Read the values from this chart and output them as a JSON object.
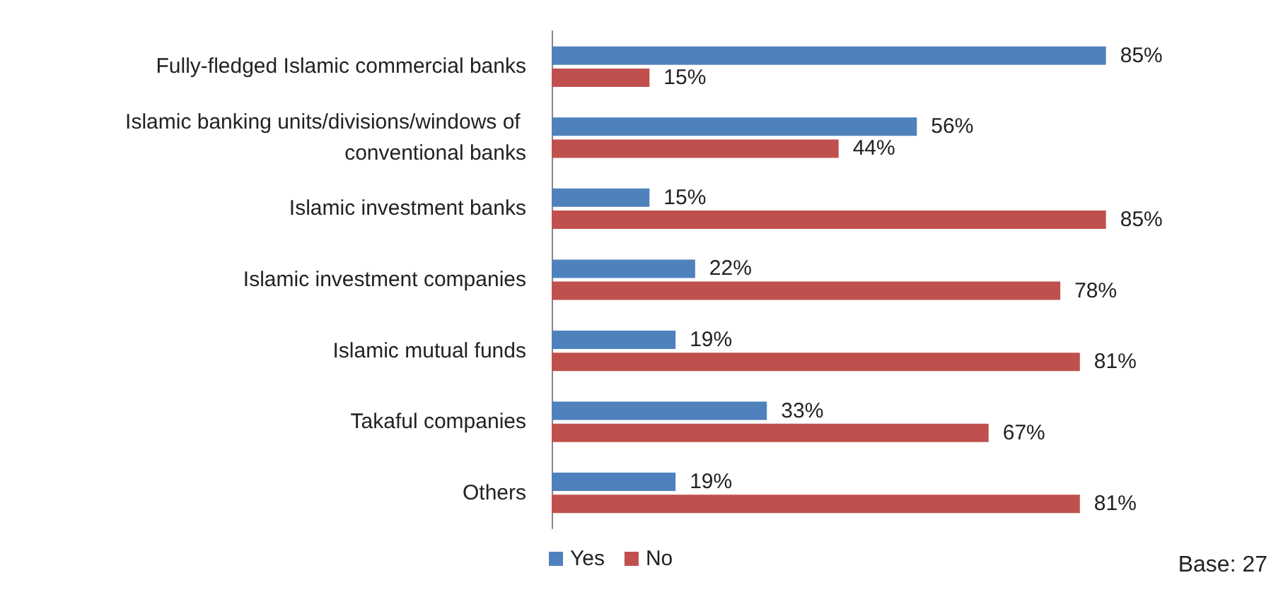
{
  "chart_data": {
    "type": "bar",
    "orientation": "horizontal",
    "categories": [
      "Fully-fledged Islamic commercial banks",
      "Islamic banking units/divisions/windows of conventional banks",
      "Islamic investment banks",
      "Islamic investment companies",
      "Islamic mutual funds",
      "Takaful companies",
      "Others"
    ],
    "series": [
      {
        "name": "Yes",
        "color": "#4f81bd",
        "values": [
          85,
          56,
          15,
          22,
          19,
          33,
          19
        ],
        "value_labels": [
          "85%",
          "56%",
          "15%",
          "22%",
          "19%",
          "33%",
          "19%"
        ]
      },
      {
        "name": "No",
        "color": "#c0504d",
        "values": [
          15,
          44,
          85,
          78,
          81,
          67,
          81
        ],
        "value_labels": [
          "15%",
          "44%",
          "85%",
          "78%",
          "81%",
          "67%",
          "81%"
        ]
      }
    ],
    "tick_labels": "y",
    "grid": false,
    "legend": "bottom left",
    "annotations": [
      "Base: 27"
    ]
  }
}
